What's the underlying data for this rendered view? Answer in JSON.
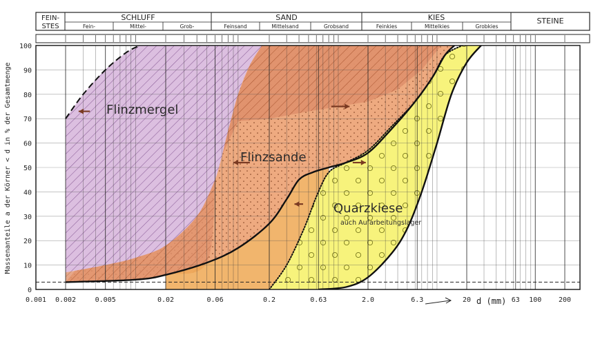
{
  "header": {
    "feinstes": "FEIN-\nSTES",
    "schluff": "SCHLUFF",
    "schluff_sub": [
      "Fein-",
      "Mittel-",
      "Grob-"
    ],
    "sand": "SAND",
    "sand_sub": [
      "Feinsand",
      "Mittelsand",
      "Grobsand"
    ],
    "kies": "KIES",
    "kies_sub": [
      "Feinkies",
      "Mittelkies",
      "Grobkies"
    ],
    "steine": "STEINE"
  },
  "chart_data": {
    "type": "area",
    "x_scale": "log",
    "xlabel": "d (mm)",
    "ylabel": "Massenanteile a der Körner < d in % der Gesamtmenge",
    "xlim": [
      0.001,
      200
    ],
    "ylim": [
      0,
      100
    ],
    "x_ticks": [
      {
        "v": 0.001,
        "label": "0.001"
      },
      {
        "v": 0.002,
        "label": "0.002"
      },
      {
        "v": 0.005,
        "label": "0.005"
      },
      {
        "v": 0.02,
        "label": "0.02"
      },
      {
        "v": 0.06,
        "label": "0.06"
      },
      {
        "v": 0.2,
        "label": "0.2"
      },
      {
        "v": 0.63,
        "label": "0.63"
      },
      {
        "v": 2.0,
        "label": "2.0"
      },
      {
        "v": 6.3,
        "label": "6.3"
      },
      {
        "v": 20,
        "label": "20"
      },
      {
        "v": 63,
        "label": "63"
      },
      {
        "v": 100,
        "label": "100"
      },
      {
        "v": 200,
        "label": "200"
      }
    ],
    "y_ticks": [
      0,
      10,
      20,
      30,
      40,
      50,
      60,
      70,
      80,
      90,
      100
    ],
    "reference_line_y": 3,
    "series": [
      {
        "name": "Flinzmergel",
        "color": "#d8b7dc",
        "hatch": "#8a5a9a",
        "upper": [
          [
            0.002,
            70
          ],
          [
            0.003,
            80
          ],
          [
            0.005,
            90
          ],
          [
            0.008,
            97
          ],
          [
            0.011,
            100
          ]
        ],
        "lower": [
          [
            0.002,
            7
          ],
          [
            0.005,
            10
          ],
          [
            0.01,
            13
          ],
          [
            0.02,
            18
          ],
          [
            0.04,
            30
          ],
          [
            0.06,
            45
          ],
          [
            0.08,
            65
          ],
          [
            0.1,
            80
          ],
          [
            0.13,
            92
          ],
          [
            0.17,
            100
          ]
        ]
      },
      {
        "name": "Flinzsande",
        "color": "#e8a27a",
        "hatch": "#b45a35",
        "upper": [
          [
            0.06,
            45
          ],
          [
            0.08,
            65
          ],
          [
            0.1,
            80
          ],
          [
            0.13,
            92
          ],
          [
            0.17,
            100
          ],
          [
            12,
            100
          ]
        ],
        "lower": [
          [
            0.002,
            3
          ],
          [
            0.01,
            4
          ],
          [
            0.02,
            6
          ],
          [
            0.05,
            11
          ],
          [
            0.1,
            17
          ],
          [
            0.2,
            27
          ],
          [
            0.3,
            37
          ],
          [
            0.4,
            45
          ],
          [
            0.55,
            48
          ],
          [
            0.8,
            50
          ],
          [
            1.2,
            52
          ],
          [
            2,
            56
          ],
          [
            3.5,
            66
          ],
          [
            6,
            77
          ],
          [
            9,
            87
          ],
          [
            12,
            96
          ],
          [
            15,
            100
          ]
        ]
      },
      {
        "name": "Quarzkiese",
        "annotation": "auch Aufarbeitungslager",
        "color": "#f6f37a",
        "marker": "#5a5a00",
        "upper": [
          [
            0.2,
            0
          ],
          [
            0.3,
            10
          ],
          [
            0.45,
            25
          ],
          [
            0.6,
            38
          ],
          [
            0.8,
            48
          ],
          [
            1.2,
            52
          ],
          [
            2,
            57
          ],
          [
            3.5,
            67
          ],
          [
            6,
            77
          ],
          [
            9,
            87
          ],
          [
            12,
            96
          ],
          [
            18,
            100
          ]
        ],
        "lower": [
          [
            0.63,
            0
          ],
          [
            1.2,
            1
          ],
          [
            2,
            5
          ],
          [
            3.5,
            15
          ],
          [
            5,
            25
          ],
          [
            7,
            40
          ],
          [
            10,
            60
          ],
          [
            14,
            80
          ],
          [
            20,
            93
          ],
          [
            28,
            100
          ]
        ]
      }
    ],
    "curves": [
      {
        "style": "solid",
        "points": [
          [
            0.002,
            3
          ],
          [
            0.01,
            4
          ],
          [
            0.02,
            6
          ],
          [
            0.05,
            11
          ],
          [
            0.1,
            17
          ],
          [
            0.2,
            27
          ],
          [
            0.3,
            37
          ],
          [
            0.4,
            45
          ],
          [
            0.55,
            48
          ],
          [
            0.8,
            50
          ],
          [
            1.2,
            52
          ],
          [
            2,
            56
          ],
          [
            3.5,
            66
          ],
          [
            6,
            77
          ],
          [
            9,
            87
          ],
          [
            12,
            96
          ],
          [
            15,
            100
          ]
        ]
      },
      {
        "style": "solid",
        "points": [
          [
            0.63,
            0
          ],
          [
            1.2,
            1
          ],
          [
            2,
            5
          ],
          [
            3.5,
            15
          ],
          [
            5,
            25
          ],
          [
            7,
            40
          ],
          [
            10,
            60
          ],
          [
            14,
            80
          ],
          [
            20,
            93
          ],
          [
            28,
            100
          ]
        ]
      },
      {
        "style": "dotted",
        "points": [
          [
            0.2,
            0
          ],
          [
            0.3,
            10
          ],
          [
            0.45,
            25
          ],
          [
            0.6,
            38
          ],
          [
            0.8,
            48
          ],
          [
            1.2,
            52
          ],
          [
            2,
            57
          ],
          [
            3.5,
            67
          ],
          [
            6,
            77
          ],
          [
            9,
            87
          ],
          [
            12,
            96
          ],
          [
            18,
            100
          ]
        ]
      },
      {
        "style": "dashed",
        "points": [
          [
            0.002,
            70
          ],
          [
            0.003,
            80
          ],
          [
            0.005,
            90
          ],
          [
            0.008,
            97
          ],
          [
            0.011,
            100
          ]
        ]
      }
    ]
  }
}
